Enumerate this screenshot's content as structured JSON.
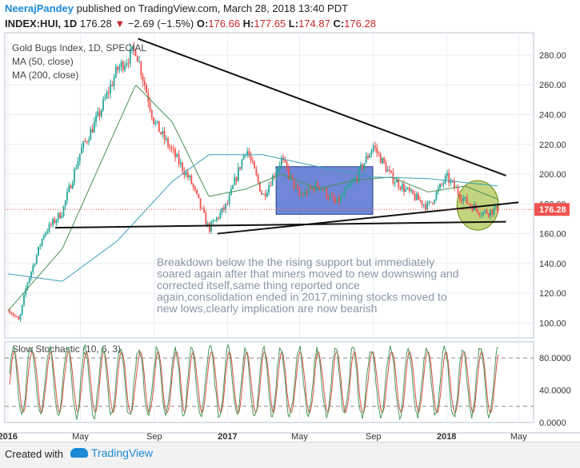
{
  "header": {
    "author": "NeerajPandey",
    "published_text": "published on TradingView.com, March 28, 2018 13:40 PDT",
    "symbol": "INDEX:HUI, 1D",
    "last": "176.28",
    "change": "−2.69 (−1.5%)",
    "open_label": "O:",
    "open": "176.66",
    "high_label": "H:",
    "high": "177.65",
    "low_label": "L:",
    "low": "174.87",
    "close_label": "C:",
    "close": "176.28"
  },
  "footer": {
    "created_with": "Created with",
    "brand": "TradingView"
  },
  "chart_data": [
    {
      "type": "line",
      "title": "Gold Bugs Index, 1D, SPECIAL",
      "legend": [
        "MA (50, close)",
        "MA (200, close)"
      ],
      "y_axis_position": "right",
      "ylim": [
        90,
        295
      ],
      "yticks": [
        100,
        120,
        140,
        160,
        180,
        200,
        220,
        240,
        260,
        280
      ],
      "ytick_labels": [
        "100.00",
        "120.00",
        "140.00",
        "160.00",
        "180.00",
        "200.00",
        "220.00",
        "240.00",
        "260.00",
        "280.00"
      ],
      "last_price_label": "176.28",
      "xtick_labels": [
        "2016",
        "May",
        "Sep",
        "2017",
        "May",
        "Sep",
        "2018",
        "May"
      ],
      "price_key_points": [
        {
          "x": "2016-01",
          "y": 110
        },
        {
          "x": "2016-01-20",
          "y": 101
        },
        {
          "x": "2016-02",
          "y": 125
        },
        {
          "x": "2016-03",
          "y": 160
        },
        {
          "x": "2016-04",
          "y": 175
        },
        {
          "x": "2016-05",
          "y": 215
        },
        {
          "x": "2016-06",
          "y": 240
        },
        {
          "x": "2016-07",
          "y": 270
        },
        {
          "x": "2016-08",
          "y": 284
        },
        {
          "x": "2016-09",
          "y": 235
        },
        {
          "x": "2016-10",
          "y": 215
        },
        {
          "x": "2016-11",
          "y": 195
        },
        {
          "x": "2016-12",
          "y": 163
        },
        {
          "x": "2017-01",
          "y": 180
        },
        {
          "x": "2017-02",
          "y": 218
        },
        {
          "x": "2017-03",
          "y": 185
        },
        {
          "x": "2017-04",
          "y": 210
        },
        {
          "x": "2017-05",
          "y": 185
        },
        {
          "x": "2017-06",
          "y": 193
        },
        {
          "x": "2017-07",
          "y": 180
        },
        {
          "x": "2017-08",
          "y": 196
        },
        {
          "x": "2017-09",
          "y": 219
        },
        {
          "x": "2017-10",
          "y": 198
        },
        {
          "x": "2017-11",
          "y": 187
        },
        {
          "x": "2017-12",
          "y": 178
        },
        {
          "x": "2018-01",
          "y": 198
        },
        {
          "x": "2018-02",
          "y": 182
        },
        {
          "x": "2018-03",
          "y": 174
        },
        {
          "x": "2018-03-28",
          "y": 176.28
        }
      ],
      "ma50_key_points": [
        {
          "x": "2016-01",
          "y": 108
        },
        {
          "x": "2016-04",
          "y": 150
        },
        {
          "x": "2016-06",
          "y": 205
        },
        {
          "x": "2016-08",
          "y": 260
        },
        {
          "x": "2016-10",
          "y": 235
        },
        {
          "x": "2016-12",
          "y": 185
        },
        {
          "x": "2017-02",
          "y": 190
        },
        {
          "x": "2017-04",
          "y": 200
        },
        {
          "x": "2017-06",
          "y": 190
        },
        {
          "x": "2017-08",
          "y": 196
        },
        {
          "x": "2017-10",
          "y": 198
        },
        {
          "x": "2017-12",
          "y": 188
        },
        {
          "x": "2018-02",
          "y": 192
        },
        {
          "x": "2018-03-28",
          "y": 183
        }
      ],
      "ma200_key_points": [
        {
          "x": "2016-01",
          "y": 133
        },
        {
          "x": "2016-04",
          "y": 128
        },
        {
          "x": "2016-07",
          "y": 155
        },
        {
          "x": "2016-10",
          "y": 195
        },
        {
          "x": "2016-12",
          "y": 213
        },
        {
          "x": "2017-03",
          "y": 213
        },
        {
          "x": "2017-06",
          "y": 205
        },
        {
          "x": "2017-09",
          "y": 198
        },
        {
          "x": "2017-12",
          "y": 197
        },
        {
          "x": "2018-03-28",
          "y": 192
        }
      ],
      "trendlines": [
        {
          "from": {
            "x": "2016-08-05",
            "y": 291
          },
          "to": {
            "x": "2018-04-10",
            "y": 199
          }
        },
        {
          "from": {
            "x": "2016-12-15",
            "y": 160
          },
          "to": {
            "x": "2018-05-01",
            "y": 181
          }
        },
        {
          "from": {
            "x": "2016-03-20",
            "y": 164
          },
          "to": {
            "x": "2018-04-10",
            "y": 168
          }
        }
      ],
      "annotation": "Breakdown below the the rising support but immediately soared again after that miners moved to new downswing and corrected itself,same thing reported once again,consolidation ended in 2017,mining stocks moved to new lows,clearly implication are now bearish",
      "grid": true,
      "colors": {
        "up": "#26a69a",
        "down": "#ef5350",
        "ma50": "#4a8f52",
        "ma200": "#3aa0b8",
        "box": "#3f5fc8",
        "ellipse": "#9ab82a",
        "text": "#8a96a8"
      }
    },
    {
      "type": "line",
      "title": "Slow Stochastic (10, 6, 3)",
      "ylim": [
        0,
        100
      ],
      "yticks": [
        0,
        40,
        80
      ],
      "ytick_labels": [
        "0.0000",
        "40.0000",
        "80.0000"
      ],
      "levels": [
        20,
        80
      ],
      "colors": {
        "k": "#4a9a60",
        "d": "#d85040",
        "level": "#888888"
      }
    }
  ]
}
